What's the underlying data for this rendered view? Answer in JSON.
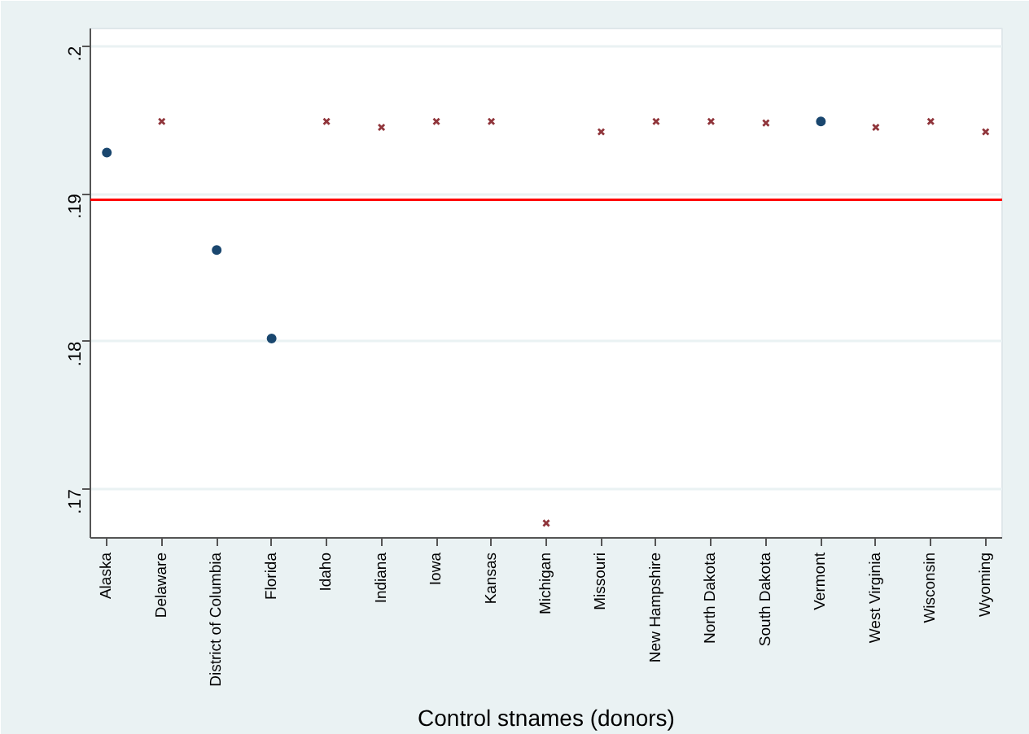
{
  "chart_data": {
    "type": "scatter",
    "xlabel": "Control stnames (donors)",
    "categories": [
      "Alaska",
      "Delaware",
      "District of Columbia",
      "Florida",
      "Idaho",
      "Indiana",
      "Iowa",
      "Kansas",
      "Michigan",
      "Missouri",
      "New Hampshire",
      "North Dakota",
      "South Dakota",
      "Vermont",
      "West Virginia",
      "Wisconsin",
      "Wyoming"
    ],
    "series": [
      {
        "color": "#1a476f",
        "marker": "circle",
        "values": [
          0.1928,
          null,
          0.1862,
          0.1802,
          null,
          null,
          null,
          null,
          null,
          null,
          null,
          null,
          null,
          0.1949,
          null,
          null,
          null
        ]
      },
      {
        "color": "#90353b",
        "marker": "cross",
        "values": [
          null,
          0.1949,
          null,
          null,
          0.1949,
          0.1945,
          0.1949,
          0.1949,
          0.1677,
          0.1942,
          0.1949,
          0.1949,
          0.1948,
          null,
          0.1945,
          0.1949,
          0.1942
        ]
      }
    ],
    "ylim": [
      0.1667,
      0.2012
    ],
    "yticks": [
      {
        "value": 0.17,
        "label": ".17"
      },
      {
        "value": 0.18,
        "label": ".18"
      },
      {
        "value": 0.19,
        "label": ".19"
      },
      {
        "value": 0.2,
        "label": ".2"
      }
    ],
    "grid": "y",
    "ref_lines": [
      {
        "axis": "y",
        "value": 0.1896,
        "color": "#ff0000"
      }
    ]
  }
}
